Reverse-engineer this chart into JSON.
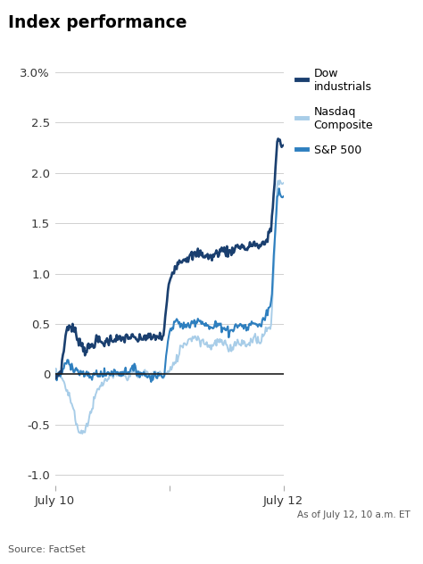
{
  "title": "Index performance",
  "subtitle": "As of July 12, 10 a.m. ET",
  "source": "Source: FactSet",
  "ylim": [
    -1.1,
    3.1
  ],
  "yticks": [
    -1.0,
    -0.5,
    0.0,
    0.5,
    1.0,
    1.5,
    2.0,
    2.5,
    3.0
  ],
  "ytick_labels": [
    "-1.0",
    "-0.5",
    "0",
    "0.5",
    "1.0",
    "1.5",
    "2.0",
    "2.5",
    "3.0%"
  ],
  "xtick_pos": [
    0,
    130,
    259
  ],
  "xtick_labels": [
    "July 10",
    "",
    "July 12"
  ],
  "colors": {
    "dow": "#1a3f6f",
    "nasdaq": "#a8cde8",
    "sp500": "#2e7fbf"
  },
  "legend": [
    {
      "label": "Dow\nindustrials",
      "color": "#1a3f6f"
    },
    {
      "label": "Nasdaq\nComposite",
      "color": "#a8cde8"
    },
    {
      "label": "S&P 500",
      "color": "#2e7fbf"
    }
  ],
  "background_color": "#ffffff",
  "grid_color": "#d0d0d0",
  "zero_line_color": "#222222"
}
